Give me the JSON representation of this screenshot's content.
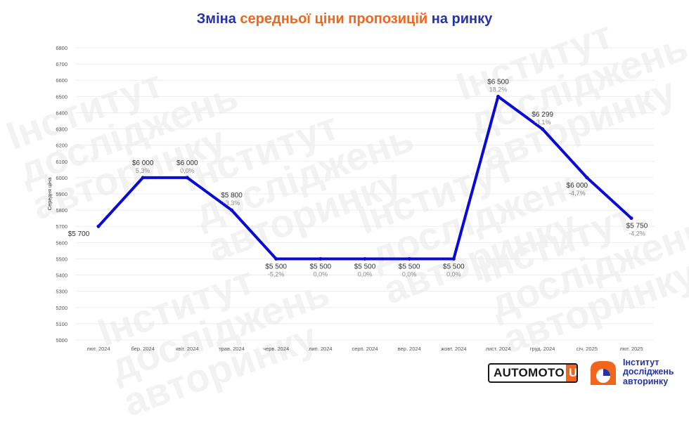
{
  "header": {
    "title_part1": "Зміна",
    "title_part2": "середньої ціни пропозицій",
    "title_part3": "на ринку"
  },
  "watermark": {
    "line1": "Інститут",
    "line2": "досліджень",
    "line3": "авторинку"
  },
  "logos": {
    "automoto_text": "AUTOMOTO",
    "automoto_ua": "UA",
    "institute_line1": "Інститут",
    "institute_line2": "досліджень",
    "institute_line3": "авторинку"
  },
  "colors": {
    "line": "#0a0ad6",
    "title_blue": "#2433a8",
    "title_orange": "#f2651d",
    "grid": "#ececec",
    "percent_text": "#8a8a8a"
  },
  "chart_data": {
    "type": "line",
    "title": "Зміна середньої ціни пропозицій на ринку",
    "xlabel": "",
    "ylabel": "Середня ціна",
    "ylim": [
      5000,
      6800
    ],
    "ytick_step": 100,
    "grid": true,
    "categories": [
      "лют. 2024",
      "бер. 2024",
      "квіт. 2024",
      "трав. 2024",
      "черв. 2024",
      "лип. 2024",
      "серп. 2024",
      "вер. 2024",
      "жовт. 2024",
      "лист. 2024",
      "груд. 2024",
      "січ. 2025",
      "лют. 2025"
    ],
    "series": [
      {
        "values": [
          5700,
          6000,
          6000,
          5800,
          5500,
          5500,
          5500,
          5500,
          5500,
          6500,
          6299,
          6000,
          5750
        ],
        "value_labels": [
          "$5 700",
          "$6 000",
          "$6 000",
          "$5 800",
          "$5 500",
          "$5 500",
          "$5 500",
          "$5 500",
          "$5 500",
          "$6 500",
          "$6 299",
          "$6 000",
          "$5 750"
        ],
        "change_labels": [
          "",
          "5,3%",
          "0,0%",
          "-3,3%",
          "-5,2%",
          "0,0%",
          "0,0%",
          "0,0%",
          "0,0%",
          "18,2%",
          "-3,1%",
          "-4,7%",
          "-4,2%"
        ]
      }
    ]
  }
}
